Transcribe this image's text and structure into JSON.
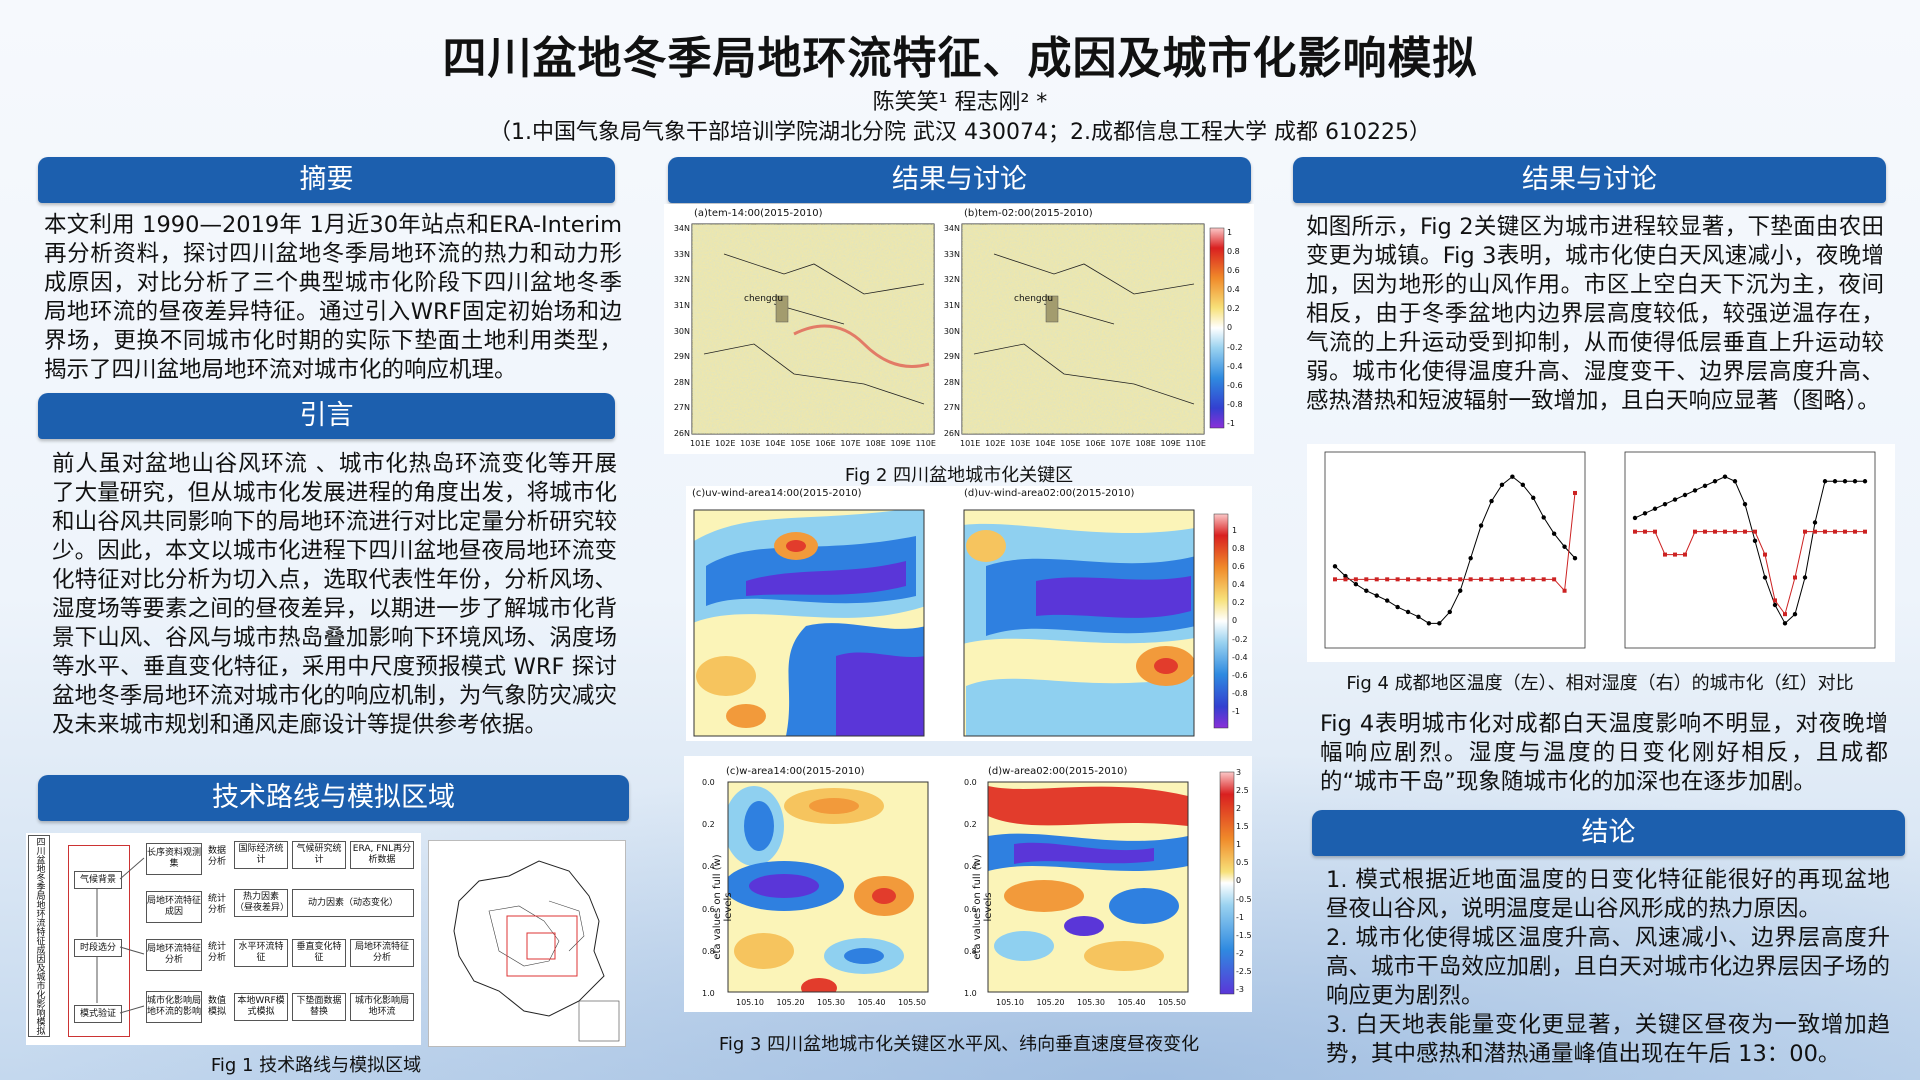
{
  "header": {
    "title": "四川盆地冬季局地环流特征、成因及城市化影响模拟",
    "authors": "陈笑笑¹  程志刚² *",
    "affiliation": "（1.中国气象局气象干部培训学院湖北分院 武汉 430074；2.成都信息工程大学 成都 610225）"
  },
  "abstract": {
    "heading": "摘要",
    "text": "本文利用 1990—2019年 1月近30年站点和ERA-Interim再分析资料，探讨四川盆地冬季局地环流的热力和动力形成原因，对比分析了三个典型城市化阶段下四川盆地冬季局地环流的昼夜差异特征。通过引入WRF固定初始场和边界场，更换不同城市化时期的实际下垫面土地利用类型，揭示了四川盆地局地环流对城市化的响应机理。"
  },
  "intro": {
    "heading": "引言",
    "text": "前人虽对盆地山谷风环流 、城市化热岛环流变化等开展了大量研究，但从城市化发展进程的角度出发，将城市化和山谷风共同影响下的局地环流进行对比定量分析研究较少。因此，本文以城市化进程下四川盆地昼夜局地环流变化特征对比分析为切入点，选取代表性年份，分析风场、湿度场等要素之间的昼夜差异，以期进一步了解城市化背景下山风、谷风与城市热岛叠加影响下环境风场、涡度场等水平、垂直变化特征，采用中尺度预报模式 WRF 探讨盆地冬季局地环流对城市化的响应机制，为气象防灾减灾及未来城市规划和通风走廊设计等提供参考依据。"
  },
  "method": {
    "heading": "技术路线与模拟区域",
    "caption": "Fig  1 技术路线与模拟区域",
    "flow_title": "四川盆地冬季局地环流特征成因及城市化影响模拟",
    "left_steps": [
      "气候背景",
      "时段选分",
      "模式验证"
    ],
    "mid_items": [
      "长序资料观测集",
      "局地环流特征成因",
      "局地环流特征分析",
      "城市化影响局地环流的影响"
    ],
    "small_labels": [
      "数据分析",
      "统计分析",
      "统计分析",
      "数值模拟"
    ],
    "grid": [
      [
        "国际经济统计",
        "气候研究统计",
        "ERA, FNL再分析数据"
      ],
      [
        "热力因素（昼夜差异）",
        "动力因素（动态变化）",
        ""
      ],
      [
        "水平环流特征",
        "垂直变化特征",
        "局地环流特征分析"
      ],
      [
        "本地WRF模式模拟",
        "下垫面数据替换",
        "城市化影响局地环流"
      ]
    ]
  },
  "results1": {
    "heading": "结果与讨论",
    "fig2_caption": "Fig 2 四川盆地城市化关键区",
    "fig3_caption": "Fig 3 四川盆地城市化关键区水平风、纬向垂直速度昼夜变化",
    "fig2_panels": [
      "(a)tem-14:00(2015-2010)",
      "(b)tem-02:00(2015-2010)"
    ],
    "fig3_panels": [
      "(c)uv-wind-area14:00(2015-2010)",
      "(d)uv-wind-area02:00(2015-2010)",
      "(c)w-area14:00(2015-2010)",
      "(d)w-area02:00(2015-2010)"
    ],
    "lat_ticks": [
      "34N",
      "33N",
      "32N",
      "31N",
      "30N",
      "29N",
      "28N",
      "27N",
      "26N"
    ],
    "lon_ticks": [
      "101E",
      "102E",
      "103E",
      "104E",
      "105E",
      "106E",
      "107E",
      "108E",
      "109E",
      "110E"
    ],
    "colorbar_ticks": [
      "1",
      "0.8",
      "0.6",
      "0.4",
      "0.2",
      "0",
      "-0.2",
      "-0.4",
      "-0.6",
      "-0.8",
      "-1"
    ],
    "colorbar_w_ticks": [
      "3",
      "2.5",
      "2",
      "1.5",
      "1",
      "0.5",
      "0",
      "-0.5",
      "-1",
      "-1.5",
      "-2",
      "-2.5",
      "-3"
    ],
    "city_label": "chengdu",
    "eta_label": "eta values on full (w) levels",
    "eta_ticks": [
      "0.0",
      "0.2",
      "0.4",
      "0.6",
      "0.8",
      "1.0"
    ],
    "lon2_ticks": [
      "105.10",
      "105.20",
      "105.30",
      "105.40",
      "105.50"
    ]
  },
  "results2": {
    "heading": "结果与讨论",
    "text": "如图所示，Fig 2关键区为城市进程较显著，下垫面由农田变更为城镇。Fig 3表明，城市化使白天风速减小，夜晚增加，因为地形的山风作用。市区上空白天下沉为主，夜间相反，由于冬季盆地内边界层高度较低，较强逆温存在，气流的上升运动受到抑制，从而使得低层垂直上升运动较弱。城市化使得温度升高、湿度变干、边界层高度升高、感热潜热和短波辐射一致增加，且白天响应显著（图略）。",
    "fig4_caption": "Fig 4 成都地区温度（左）、相对湿度（右）的城市化（红）对比",
    "text2": "Fig 4表明城市化对成都白天温度影响不明显，对夜晚增幅响应剧烈。湿度与温度的日变化刚好相反，且成都的“城市干岛”现象随城市化的加深也在逐步加剧。"
  },
  "conclusion": {
    "heading": "结论",
    "items": [
      "1. 模式根据近地面温度的日变化特征能很好的再现盆地昼夜山谷风，说明温度是山谷风形成的热力原因。",
      "2. 城市化使得城区温度升高、风速减小、边界层高度升高、城市干岛效应加剧，且白天对城市化边界层因子场的响应更为剧烈。",
      "3. 白天地表能量变化更显著，关键区昼夜为一致增加趋势，其中感热和潜热通量峰值出现在午后 13：00。"
    ]
  },
  "chart_data": [
    {
      "type": "line",
      "title": "",
      "xlabel": "",
      "ylabel": "",
      "series": [
        {
          "color": "#000000",
          "values": [
            8,
            7.4,
            6.9,
            6.5,
            6.2,
            5.9,
            5.5,
            5.2,
            4.9,
            4.5,
            4.5,
            5.2,
            6.5,
            8.5,
            10.5,
            12,
            13,
            13.5,
            13,
            12.2,
            11,
            10,
            9.2,
            8.5
          ]
        },
        {
          "color": "#cc2222",
          "values": [
            7.2,
            7.2,
            7.2,
            7.2,
            7.2,
            7.2,
            7.2,
            7.2,
            7.2,
            7.2,
            7.2,
            7.2,
            7.2,
            7.2,
            7.2,
            7.2,
            7.2,
            7.2,
            7.2,
            7.2,
            7.2,
            7.2,
            6.5,
            12.5
          ]
        }
      ]
    },
    {
      "type": "line",
      "title": "",
      "xlabel": "",
      "ylabel": "",
      "series": [
        {
          "color": "#000000",
          "values": [
            93,
            94,
            95,
            96,
            97,
            98,
            99,
            100,
            101,
            102,
            101,
            96,
            88,
            80,
            74,
            70,
            72,
            80,
            92,
            101,
            101,
            101,
            101,
            101
          ]
        },
        {
          "color": "#cc2222",
          "values": [
            90,
            90,
            90,
            85,
            85,
            85,
            90,
            90,
            90,
            90,
            90,
            90,
            90,
            85,
            75,
            72,
            80,
            90,
            90,
            90,
            90,
            90,
            90,
            90
          ]
        }
      ]
    }
  ]
}
